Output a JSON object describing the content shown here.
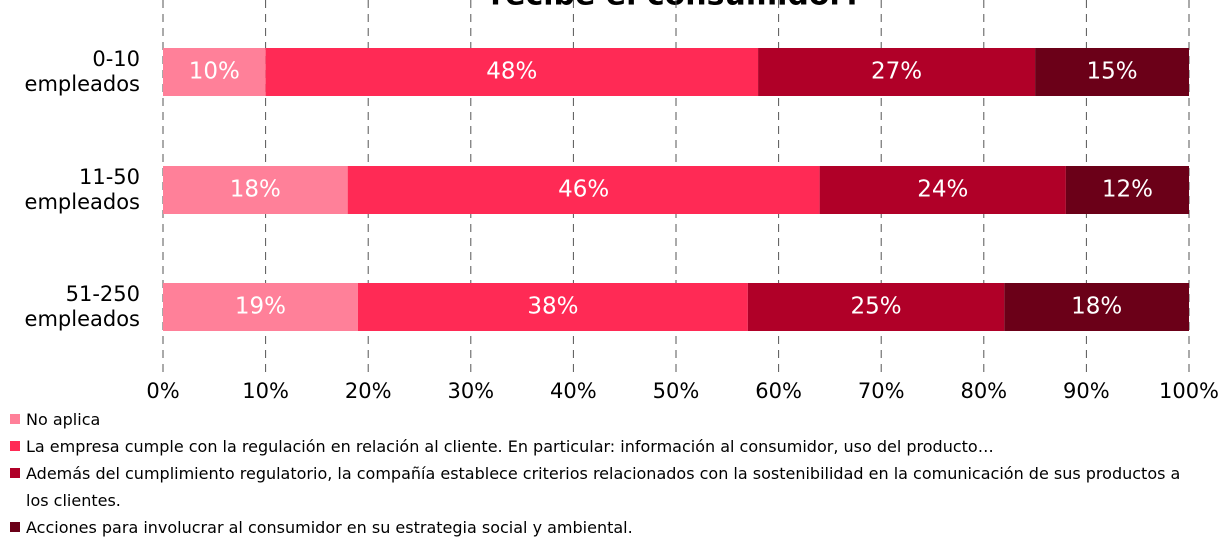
{
  "chart_data": {
    "type": "stacked-barh",
    "title": "recibe el consumidor?",
    "categories": [
      "0-10 empleados",
      "11-50 empleados",
      "51-250 empleados"
    ],
    "series": [
      {
        "name": "No aplica",
        "color": "#ff8099",
        "values": [
          10,
          18,
          19
        ],
        "value_labels": [
          "10%",
          "18%",
          "19%"
        ]
      },
      {
        "name": "La empresa cumple con la regulación en relación al cliente. En particular: información al consumidor, uso del producto…",
        "color": "#ff2a55",
        "values": [
          48,
          46,
          38
        ],
        "value_labels": [
          "48%",
          "46%",
          "38%"
        ]
      },
      {
        "name": "Además del cumplimiento regulatorio, la compañía establece criterios relacionados con la sostenibilidad en la comunicación de sus productos a los clientes.",
        "color": "#b00028",
        "values": [
          27,
          24,
          25
        ],
        "value_labels": [
          "27%",
          "24%",
          "25%"
        ]
      },
      {
        "name": "Acciones para involucrar al consumidor en su estrategia social y ambiental.",
        "color": "#6b0018",
        "values": [
          15,
          12,
          18
        ],
        "value_labels": [
          "15%",
          "12%",
          "18%"
        ]
      }
    ],
    "xlim": [
      0,
      100
    ],
    "xticks": [
      {
        "value": 0,
        "label": "0%"
      },
      {
        "value": 10,
        "label": "10%"
      },
      {
        "value": 20,
        "label": "20%"
      },
      {
        "value": 30,
        "label": "30%"
      },
      {
        "value": 40,
        "label": "40%"
      },
      {
        "value": 50,
        "label": "50%"
      },
      {
        "value": 60,
        "label": "60%"
      },
      {
        "value": 70,
        "label": "70%"
      },
      {
        "value": 80,
        "label": "80%"
      },
      {
        "value": 90,
        "label": "90%"
      },
      {
        "value": 100,
        "label": "100%"
      }
    ],
    "grid": true,
    "legend": "bottom"
  }
}
